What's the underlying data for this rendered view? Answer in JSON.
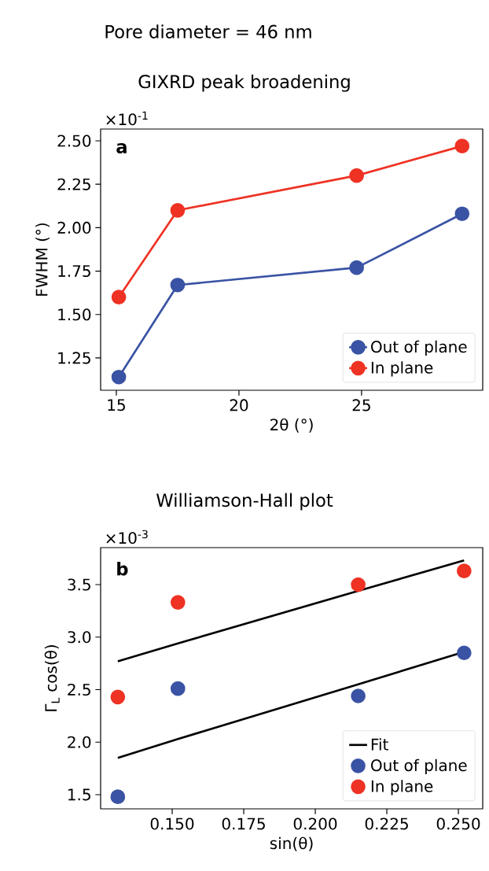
{
  "chart_data": [
    {
      "type": "line",
      "title": "GIXRD peak broadening",
      "xlabel": "2θ (°)",
      "ylabel": "FWHM (°)",
      "annotations": [
        "a",
        "×10$^{-1}$",
        "Pore diameter = 46 nm"
      ],
      "x": [
        15.1,
        17.5,
        24.8,
        29.1
      ],
      "series": [
        {
          "name": "Out of plane",
          "color": "#3a53a4",
          "values": [
            1.14,
            1.67,
            1.77,
            2.08
          ]
        },
        {
          "name": "In plane",
          "color": "#ee3224",
          "values": [
            1.6,
            2.1,
            2.3,
            2.47
          ]
        }
      ],
      "xlim": [
        14.36,
        29.94
      ],
      "ylim": [
        1.064,
        2.568
      ],
      "xticks": [
        15,
        20,
        25
      ],
      "yticks": [
        1.25,
        {
          "value": 1.5,
          "label": "1.50"
        },
        1.75,
        {
          "value": 2,
          "label": "2.00"
        },
        2.25,
        {
          "value": 2.5,
          "label": "2.50"
        }
      ],
      "marker": "circle",
      "legend": "bottom right"
    },
    {
      "type": "scatter",
      "title": "Williamson-Hall plot",
      "xlabel": "sin(θ)",
      "ylabel": "Γ$_{L}$ cos(θ)",
      "annotations": [
        "b",
        "×10$^{-3}$"
      ],
      "x": [
        0.131,
        0.152,
        0.215,
        0.252
      ],
      "series": [
        {
          "name": "Fit",
          "type": "line",
          "marker": "none",
          "color": "#000000",
          "values": [
            2.77,
            2.94,
            3.44,
            3.73
          ]
        },
        {
          "type": "line",
          "marker": "none",
          "color": "#000000",
          "values": [
            1.85,
            2.03,
            2.55,
            2.86
          ]
        },
        {
          "name": "Out of plane",
          "color": "#3a53a4",
          "values": [
            1.48,
            2.51,
            2.44,
            2.85
          ]
        },
        {
          "name": "In plane",
          "color": "#ee3224",
          "values": [
            2.43,
            3.33,
            3.5,
            3.63
          ]
        }
      ],
      "xlim": [
        0.125,
        0.2585
      ],
      "ylim": [
        1.365,
        3.852
      ],
      "xticks": [
        {
          "value": 0.15,
          "label": "0.150"
        },
        0.175,
        {
          "value": 0.2,
          "label": "0.200"
        },
        0.225,
        {
          "value": 0.25,
          "label": "0.250"
        }
      ],
      "yticks": [
        1.5,
        {
          "value": 2,
          "label": "2.0"
        },
        2.5,
        {
          "value": 3,
          "label": "3.0"
        },
        3.5
      ],
      "marker": "circle",
      "legend": "bottom right"
    }
  ]
}
